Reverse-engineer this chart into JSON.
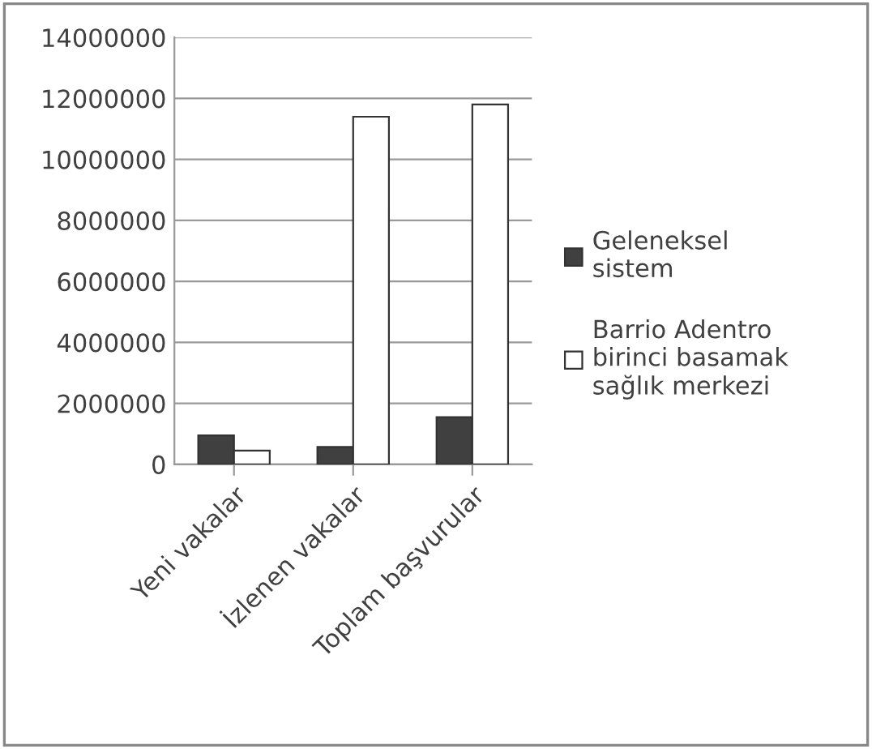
{
  "chart_data": {
    "type": "bar",
    "categories": [
      "Yeni vakalar",
      "İzlenen vakalar",
      "Toplam başvurular"
    ],
    "series": [
      {
        "name": "Geleneksel\nsistem",
        "color": "#404040",
        "values": [
          950000,
          570000,
          1550000
        ]
      },
      {
        "name": "Barrio Adentro\nbirinci basamak\nsağlık merkezi",
        "color": "#ffffff",
        "values": [
          450000,
          11400000,
          11800000
        ]
      }
    ],
    "ylim": [
      0,
      14000000
    ],
    "yticks": [
      0,
      2000000,
      4000000,
      6000000,
      8000000,
      10000000,
      12000000,
      14000000
    ],
    "grid": "y",
    "legend": "right"
  }
}
